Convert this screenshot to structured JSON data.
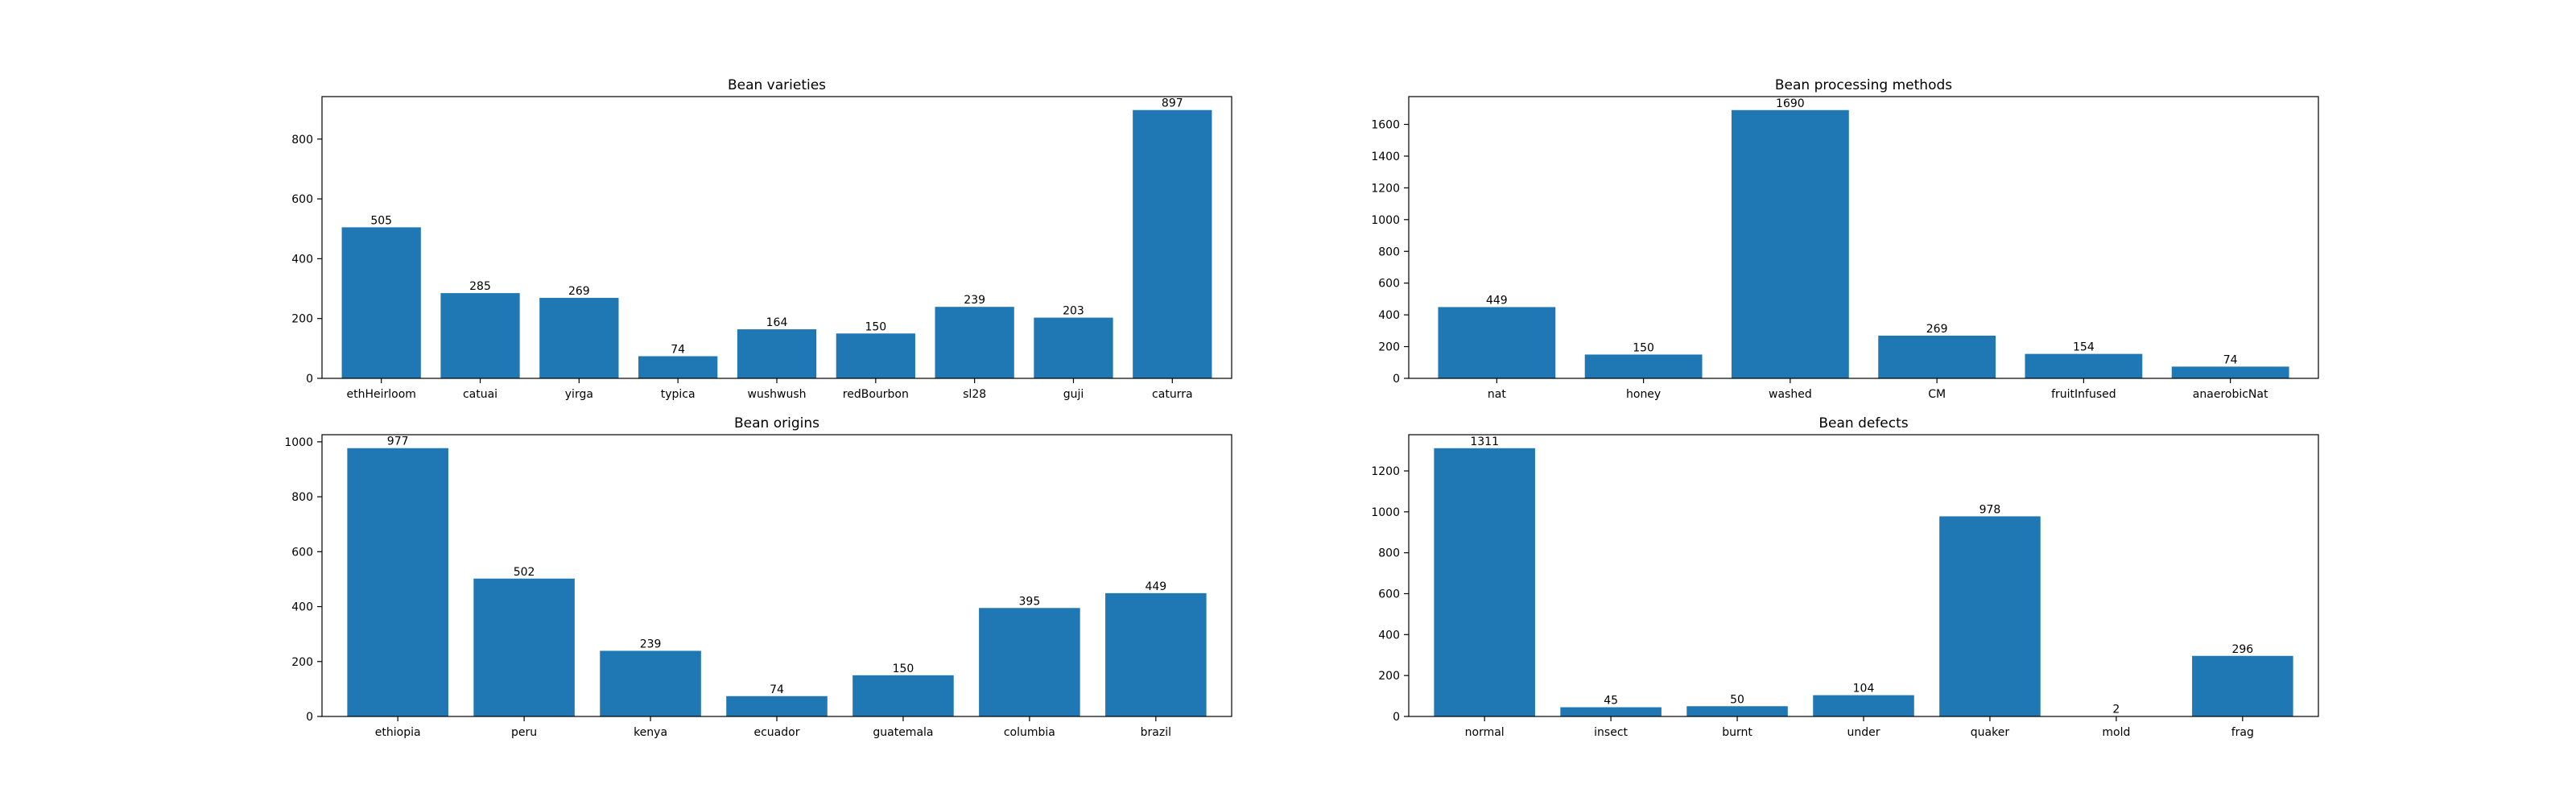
{
  "chart_data": [
    {
      "type": "bar",
      "title": "Bean varieties",
      "categories": [
        "ethHeirloom",
        "catuai",
        "yirga",
        "typica",
        "wushwush",
        "redBourbon",
        "sl28",
        "guji",
        "caturra"
      ],
      "values": [
        505,
        285,
        269,
        74,
        164,
        150,
        239,
        203,
        897
      ],
      "data_labels": [
        "505",
        "285",
        "269",
        "74",
        "164",
        "150",
        "239",
        "203",
        "897"
      ],
      "ylim": [
        0,
        942
      ],
      "yticks": [
        0,
        200,
        400,
        600,
        800
      ],
      "bar_color": "#1f77b4",
      "grid": false
    },
    {
      "type": "bar",
      "title": "Bean processing methods",
      "categories": [
        "nat",
        "honey",
        "washed",
        "CM",
        "fruitInfused",
        "anaerobicNat"
      ],
      "values": [
        449,
        150,
        1690,
        269,
        154,
        74
      ],
      "data_labels": [
        "449",
        "150",
        "1690",
        "269",
        "154",
        "74"
      ],
      "ylim": [
        0,
        1775
      ],
      "yticks": [
        0,
        200,
        400,
        600,
        800,
        1000,
        1200,
        1400,
        1600
      ],
      "bar_color": "#1f77b4",
      "grid": false
    },
    {
      "type": "bar",
      "title": "Bean origins",
      "categories": [
        "ethiopia",
        "peru",
        "kenya",
        "ecuador",
        "guatemala",
        "columbia",
        "brazil"
      ],
      "values": [
        977,
        502,
        239,
        74,
        150,
        395,
        449
      ],
      "data_labels": [
        "977",
        "502",
        "239",
        "74",
        "150",
        "395",
        "449"
      ],
      "ylim": [
        0,
        1026
      ],
      "yticks": [
        0,
        200,
        400,
        600,
        800,
        1000
      ],
      "bar_color": "#1f77b4",
      "grid": false
    },
    {
      "type": "bar",
      "title": "Bean defects",
      "categories": [
        "normal",
        "insect",
        "burnt",
        "under",
        "quaker",
        "mold",
        "frag"
      ],
      "values": [
        1311,
        45,
        50,
        104,
        978,
        2,
        296
      ],
      "data_labels": [
        "1311",
        "45",
        "50",
        "104",
        "978",
        "2",
        "296"
      ],
      "ylim": [
        0,
        1377
      ],
      "yticks": [
        0,
        200,
        400,
        600,
        800,
        1000,
        1200
      ],
      "bar_color": "#1f77b4",
      "grid": false
    }
  ]
}
